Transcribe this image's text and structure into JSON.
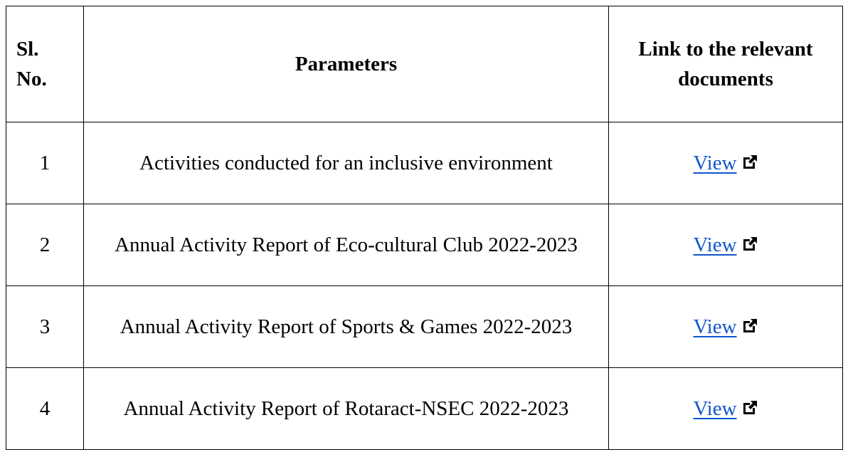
{
  "table": {
    "header": [
      "Sl. No.",
      "Parameters",
      "Link to the relevant documents"
    ],
    "rows": [
      [
        "1",
        "Activities conducted for an inclusive environment",
        "View"
      ],
      [
        "2",
        "Annual Activity Report of Eco-cultural Club 2022-2023",
        "View"
      ],
      [
        "3",
        "Annual Activity Report of Sports & Games 2022-2023",
        "View"
      ],
      [
        "4",
        "Annual Activity Report of Rotaract-NSEC 2022-2023",
        "View"
      ]
    ]
  }
}
